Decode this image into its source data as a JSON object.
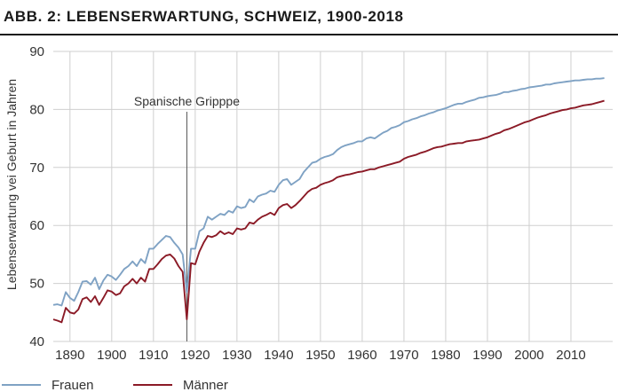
{
  "title": "ABB. 2: LEBENSERWARTUNG, SCHWEIZ, 1900-2018",
  "chart_data": {
    "type": "line",
    "title": "ABB. 2: LEBENSERWARTUNG, SCHWEIZ, 1900-2018",
    "xlabel": "",
    "ylabel": "Lebenserwartung vei Geburt in Jahren",
    "xlim": [
      1886,
      2020
    ],
    "ylim": [
      40,
      90
    ],
    "xticks": [
      1890,
      1900,
      1910,
      1920,
      1930,
      1940,
      1950,
      1960,
      1970,
      1980,
      1990,
      2000,
      2010
    ],
    "yticks": [
      40,
      50,
      60,
      70,
      80,
      90
    ],
    "grid": true,
    "legend": "bottom",
    "annotation": {
      "label": "Spanische Gripppe",
      "x": 1918
    },
    "colors": {
      "frauen": "#7fa2c4",
      "maenner": "#8b1a26",
      "annotation_line": "#555555"
    },
    "series": [
      {
        "name": "Frauen",
        "x": [
          1886,
          1887,
          1888,
          1889,
          1890,
          1891,
          1892,
          1893,
          1894,
          1895,
          1896,
          1897,
          1898,
          1899,
          1900,
          1901,
          1902,
          1903,
          1904,
          1905,
          1906,
          1907,
          1908,
          1909,
          1910,
          1911,
          1912,
          1913,
          1914,
          1915,
          1916,
          1917,
          1918,
          1919,
          1920,
          1921,
          1922,
          1923,
          1924,
          1925,
          1926,
          1927,
          1928,
          1929,
          1930,
          1931,
          1932,
          1933,
          1934,
          1935,
          1936,
          1937,
          1938,
          1939,
          1940,
          1941,
          1942,
          1943,
          1944,
          1945,
          1946,
          1947,
          1948,
          1949,
          1950,
          1951,
          1952,
          1953,
          1954,
          1955,
          1956,
          1957,
          1958,
          1959,
          1960,
          1961,
          1962,
          1963,
          1964,
          1965,
          1966,
          1967,
          1968,
          1969,
          1970,
          1971,
          1972,
          1973,
          1974,
          1975,
          1976,
          1977,
          1978,
          1979,
          1980,
          1981,
          1982,
          1983,
          1984,
          1985,
          1986,
          1987,
          1988,
          1989,
          1990,
          1991,
          1992,
          1993,
          1994,
          1995,
          1996,
          1997,
          1998,
          1999,
          2000,
          2001,
          2002,
          2003,
          2004,
          2005,
          2006,
          2007,
          2008,
          2009,
          2010,
          2011,
          2012,
          2013,
          2014,
          2015,
          2016,
          2017,
          2018
        ],
        "values": [
          46.3,
          46.4,
          46.2,
          48.5,
          47.5,
          47.0,
          48.5,
          50.3,
          50.4,
          49.8,
          51.0,
          49.0,
          50.5,
          51.5,
          51.2,
          50.6,
          51.5,
          52.5,
          53.0,
          53.8,
          53.0,
          54.2,
          53.5,
          56.0,
          56.0,
          56.8,
          57.5,
          58.2,
          58.0,
          57.0,
          56.2,
          55.0,
          48.5,
          56.0,
          56.0,
          59.0,
          59.5,
          61.5,
          61.0,
          61.5,
          62.0,
          61.8,
          62.5,
          62.2,
          63.3,
          63.0,
          63.2,
          64.5,
          64.0,
          65.0,
          65.3,
          65.5,
          66.0,
          65.8,
          67.0,
          67.8,
          68.0,
          67.0,
          67.5,
          68.0,
          69.2,
          70.0,
          70.8,
          71.0,
          71.5,
          71.8,
          72.0,
          72.3,
          73.0,
          73.5,
          73.8,
          74.0,
          74.2,
          74.5,
          74.5,
          75.0,
          75.2,
          75.0,
          75.5,
          76.0,
          76.3,
          76.8,
          77.0,
          77.3,
          77.8,
          78.0,
          78.3,
          78.5,
          78.8,
          79.0,
          79.3,
          79.5,
          79.8,
          80.0,
          80.2,
          80.5,
          80.8,
          81.0,
          81.0,
          81.3,
          81.5,
          81.7,
          82.0,
          82.1,
          82.3,
          82.4,
          82.5,
          82.7,
          83.0,
          83.0,
          83.2,
          83.3,
          83.5,
          83.6,
          83.8,
          83.9,
          84.0,
          84.1,
          84.3,
          84.3,
          84.5,
          84.6,
          84.7,
          84.8,
          84.9,
          85.0,
          85.0,
          85.1,
          85.2,
          85.2,
          85.3,
          85.3,
          85.4
        ]
      },
      {
        "name": "Männer",
        "x": [
          1886,
          1887,
          1888,
          1889,
          1890,
          1891,
          1892,
          1893,
          1894,
          1895,
          1896,
          1897,
          1898,
          1899,
          1900,
          1901,
          1902,
          1903,
          1904,
          1905,
          1906,
          1907,
          1908,
          1909,
          1910,
          1911,
          1912,
          1913,
          1914,
          1915,
          1916,
          1917,
          1918,
          1919,
          1920,
          1921,
          1922,
          1923,
          1924,
          1925,
          1926,
          1927,
          1928,
          1929,
          1930,
          1931,
          1932,
          1933,
          1934,
          1935,
          1936,
          1937,
          1938,
          1939,
          1940,
          1941,
          1942,
          1943,
          1944,
          1945,
          1946,
          1947,
          1948,
          1949,
          1950,
          1951,
          1952,
          1953,
          1954,
          1955,
          1956,
          1957,
          1958,
          1959,
          1960,
          1961,
          1962,
          1963,
          1964,
          1965,
          1966,
          1967,
          1968,
          1969,
          1970,
          1971,
          1972,
          1973,
          1974,
          1975,
          1976,
          1977,
          1978,
          1979,
          1980,
          1981,
          1982,
          1983,
          1984,
          1985,
          1986,
          1987,
          1988,
          1989,
          1990,
          1991,
          1992,
          1993,
          1994,
          1995,
          1996,
          1997,
          1998,
          1999,
          2000,
          2001,
          2002,
          2003,
          2004,
          2005,
          2006,
          2007,
          2008,
          2009,
          2010,
          2011,
          2012,
          2013,
          2014,
          2015,
          2016,
          2017,
          2018
        ],
        "values": [
          43.8,
          43.6,
          43.3,
          45.8,
          45.0,
          44.8,
          45.5,
          47.3,
          47.6,
          46.8,
          47.8,
          46.3,
          47.5,
          48.8,
          48.6,
          48.0,
          48.3,
          49.5,
          50.0,
          50.8,
          50.0,
          51.0,
          50.3,
          52.5,
          52.5,
          53.3,
          54.2,
          54.8,
          55.0,
          54.3,
          53.0,
          52.0,
          43.8,
          53.5,
          53.3,
          55.5,
          57.0,
          58.2,
          58.0,
          58.3,
          59.0,
          58.5,
          58.8,
          58.5,
          59.5,
          59.3,
          59.5,
          60.5,
          60.3,
          61.0,
          61.5,
          61.8,
          62.2,
          61.8,
          63.0,
          63.5,
          63.7,
          63.0,
          63.5,
          64.2,
          65.0,
          65.8,
          66.3,
          66.5,
          67.0,
          67.3,
          67.5,
          67.8,
          68.3,
          68.5,
          68.7,
          68.8,
          69.0,
          69.2,
          69.3,
          69.5,
          69.7,
          69.7,
          70.0,
          70.2,
          70.4,
          70.6,
          70.8,
          71.0,
          71.5,
          71.8,
          72.0,
          72.2,
          72.5,
          72.7,
          73.0,
          73.3,
          73.5,
          73.6,
          73.8,
          74.0,
          74.1,
          74.2,
          74.2,
          74.5,
          74.6,
          74.7,
          74.8,
          75.0,
          75.2,
          75.5,
          75.8,
          76.0,
          76.4,
          76.6,
          76.9,
          77.2,
          77.5,
          77.8,
          78.0,
          78.3,
          78.6,
          78.8,
          79.0,
          79.3,
          79.5,
          79.7,
          79.9,
          80.0,
          80.2,
          80.3,
          80.5,
          80.7,
          80.8,
          80.9,
          81.1,
          81.3,
          81.5
        ]
      }
    ]
  }
}
